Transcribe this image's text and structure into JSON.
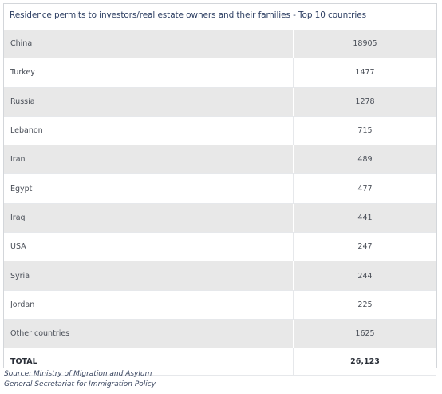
{
  "chart_data": {
    "type": "table",
    "title": "Residence permits to investors/real estate owners and their families - Top 10 countries",
    "columns": [
      "",
      ""
    ],
    "rows": [
      {
        "country": "China",
        "value": "18905"
      },
      {
        "country": "Turkey",
        "value": "1477"
      },
      {
        "country": "Russia",
        "value": "1278"
      },
      {
        "country": "Lebanon",
        "value": "715"
      },
      {
        "country": "Iran",
        "value": "489"
      },
      {
        "country": "Egypt",
        "value": "477"
      },
      {
        "country": "Iraq",
        "value": "441"
      },
      {
        "country": "USA",
        "value": "247"
      },
      {
        "country": "Syria",
        "value": "244"
      },
      {
        "country": "Jordan",
        "value": "225"
      },
      {
        "country": "Other countries",
        "value": "1625"
      }
    ],
    "total": {
      "label": "TOTAL",
      "value": "26,123"
    }
  },
  "source": {
    "line1": "Source: Ministry of Migration and Asylum",
    "line2": "General Secretariat for Immigration Policy"
  },
  "colors": {
    "title": "#2c3e62",
    "shaded_row": "#e8e8e8",
    "border": "#d3d6da",
    "source_text": "#3a4660"
  }
}
